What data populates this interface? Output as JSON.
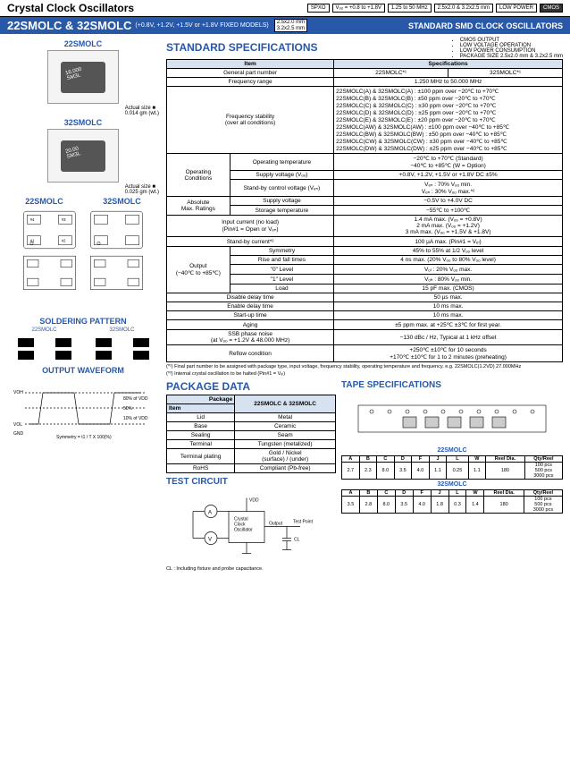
{
  "header": {
    "title": "Crystal Clock Oscillators",
    "badges": [
      "SPXO",
      "Vₒₒ = +0.8 to +1.8V",
      "1.25 to 50 MHz",
      "2.5x2.0 & 3.2x2.5 mm",
      "LOW POWER"
    ],
    "badge_dark": "CMOS"
  },
  "blue_bar": {
    "model": "22SMOLC & 32SMOLC",
    "subtitle": "(+0.8V, +1.2V, +1.5V or +1.8V FIXED MODELS)",
    "size1": "2.5x2.0 mm",
    "size2": "3.2x2.5 mm",
    "right": "STANDARD SMD CLOCK OSCILLATORS"
  },
  "left": {
    "m1_title": "22SMOLC",
    "m1_weight": "0.014 gm (wt.)",
    "m1_actual": "Actual size ■",
    "m2_title": "32SMOLC",
    "m2_weight": "0.025 gm (wt.)",
    "m2_actual": "Actual size ■",
    "dim1": "22SMOLC",
    "dim2": "32SMOLC",
    "solder_title": "SOLDERING PATTERN",
    "waveform_title": "OUTPUT WAVEFORM"
  },
  "std_spec_title": "STANDARD SPECIFICATIONS",
  "bullets": [
    "CMOS OUTPUT",
    "LOW VOLTAGE OPERATION",
    "LOW POWER CONSUMPTION",
    "PACKAGE SIZE 2.5x2.0 mm & 3.2x2.5 mm"
  ],
  "spec_table": {
    "header_item": "Item",
    "header_spec": "Specifications",
    "rows": [
      [
        "General part number",
        "22SMOLC*¹",
        "32SMOLC*¹"
      ],
      [
        "Frequency range",
        "1.250 MHz to 50.000 MHz"
      ]
    ],
    "freq_stability_label": "Frequency stability\n(over all conditions)",
    "freq_stability": [
      "22SMOLC(A) & 32SMOLC(A) : ±100 ppm over −20℃ to +70℃",
      "22SMOLC(B) & 32SMOLC(B) : ±50 ppm over −20℃ to +70℃",
      "22SMOLC(C) & 32SMOLC(C) : ±30 ppm over −20℃ to +70℃",
      "22SMOLC(D) & 32SMOLC(D) : ±25 ppm over −20℃ to +70℃",
      "22SMOLC(E) & 32SMOLC(E) : ±20 ppm over −20℃ to +70℃",
      "22SMOLC(AW) & 32SMOLC(AW) : ±100 ppm over −40℃ to +85℃",
      "22SMOLC(BW) & 32SMOLC(BW) : ±50 ppm over −40℃ to +85℃",
      "22SMOLC(CW) & 32SMOLC(CW) : ±30 ppm over −40℃ to +85℃",
      "22SMOLC(DW) & 32SMOLC(DW) : ±25 ppm over −40℃ to +85℃"
    ],
    "op_cond_label": "Operating\nConditions",
    "op_cond": [
      [
        "Operating temperature",
        "−20℃ to +70℃ (Standard)\n−40℃ to +85℃ (W = Option)"
      ],
      [
        "Supply voltage (Vₒₒ)",
        "+0.8V, +1.2V, +1.5V or +1.8V DC ±5%"
      ],
      [
        "Stand-by control voltage (Vₑₙ)",
        "Vₑₙ : 70% Vₒₒ min.\nVₑₙ : 30% Vₒₒ max.*²"
      ]
    ],
    "abs_max_label": "Absolute\nMax. Ratings",
    "abs_max": [
      [
        "Supply voltage",
        "−0.5V to +4.0V DC"
      ],
      [
        "Storage temperature",
        "−55℃ to +100℃"
      ]
    ],
    "simple_rows": [
      [
        "Input current (no load)\n(Pin#1 = Open or Vₑₙ)",
        "1.4 mA max. (Vₒₒ = +0.8V)\n2 mA max. (Vₒₒ = +1.2V)\n3 mA max. (Vₒₒ = +1.5V & +1.8V)"
      ],
      [
        "Stand-by current*²",
        "100 µA max. (Pin#1 = Vₑₗ)"
      ]
    ],
    "output_label": "Output\n(−40℃ to +85℃)",
    "output": [
      [
        "Symmetry",
        "45% to 55% at 1/2 Vₒₒ level"
      ],
      [
        "Rise and fall times",
        "4 ns max. (20% Vₒₒ to 80% Vₒₒ level)"
      ],
      [
        "\"0\" Level",
        "Vₒₗ : 20% Vₒₒ max."
      ],
      [
        "\"1\" Level",
        "Vₒₕ : 80% Vₒₒ min."
      ],
      [
        "Load",
        "15 pF max. (CMOS)"
      ]
    ],
    "bottom_rows": [
      [
        "Disable delay time",
        "50 µs max."
      ],
      [
        "Enable delay time",
        "10 ms max."
      ],
      [
        "Start-up time",
        "10 ms max."
      ],
      [
        "Aging",
        "±5 ppm max. at +25℃ ±3℃ for first year."
      ],
      [
        "SSB phase noise\n(at Vₒₒ = +1.2V & 48.000 MHz)",
        "−130 dBc / Hz, Typical at 1 kHz offset"
      ],
      [
        "Reflow condition",
        "+250℃ ±10℃ for 10 seconds\n+170℃ ±10℃ for 1 to 2 minutes (preheating)"
      ]
    ]
  },
  "notes": [
    "(*¹) Final part number to be assigned with package type, input voltage, frequency stability, operating temperature and frequency. e.g. 22SMOLC(1.2VD) 27.000MHz",
    "(*²) Internal crystal oscillation to be halted (Pin#1 = Vₑₗ)"
  ],
  "pkg_title": "PACKAGE DATA",
  "pkg_table": {
    "header1": "Package",
    "header2": "22SMOLC & 32SMOLC",
    "item_h": "Item",
    "rows": [
      [
        "Lid",
        "Metal"
      ],
      [
        "Base",
        "Ceramic"
      ],
      [
        "Sealing",
        "Seam"
      ],
      [
        "Terminal",
        "Tungsten (metalized)"
      ],
      [
        "Terminal plating",
        "Gold / Nickel\n(surface) / (under)"
      ],
      [
        "RoHS",
        "Compliant (Pb-free)"
      ]
    ]
  },
  "tape_title": "TAPE SPECIFICATIONS",
  "tape_22_title": "22SMOLC",
  "tape_32_title": "32SMOLC",
  "tape_headers": [
    "A",
    "B",
    "C",
    "D",
    "F",
    "J",
    "L",
    "W",
    "Reel Dia.",
    "Qty/Reel"
  ],
  "tape_22_row": [
    "2.7",
    "2.3",
    "8.0",
    "3.5",
    "4.0",
    "1.1",
    "0.25",
    "1.1",
    "180",
    "100 pcs\n500 pcs\n3000 pcs"
  ],
  "tape_32_row": [
    "3.5",
    "2.8",
    "8.0",
    "3.5",
    "4.0",
    "1.8",
    "0.3",
    "1.4",
    "180",
    "100 pcs\n500 pcs\n3000 pcs"
  ],
  "test_circuit_title": "TEST CIRCUIT",
  "test_note": "CL : Including fixture and probe capacitance."
}
